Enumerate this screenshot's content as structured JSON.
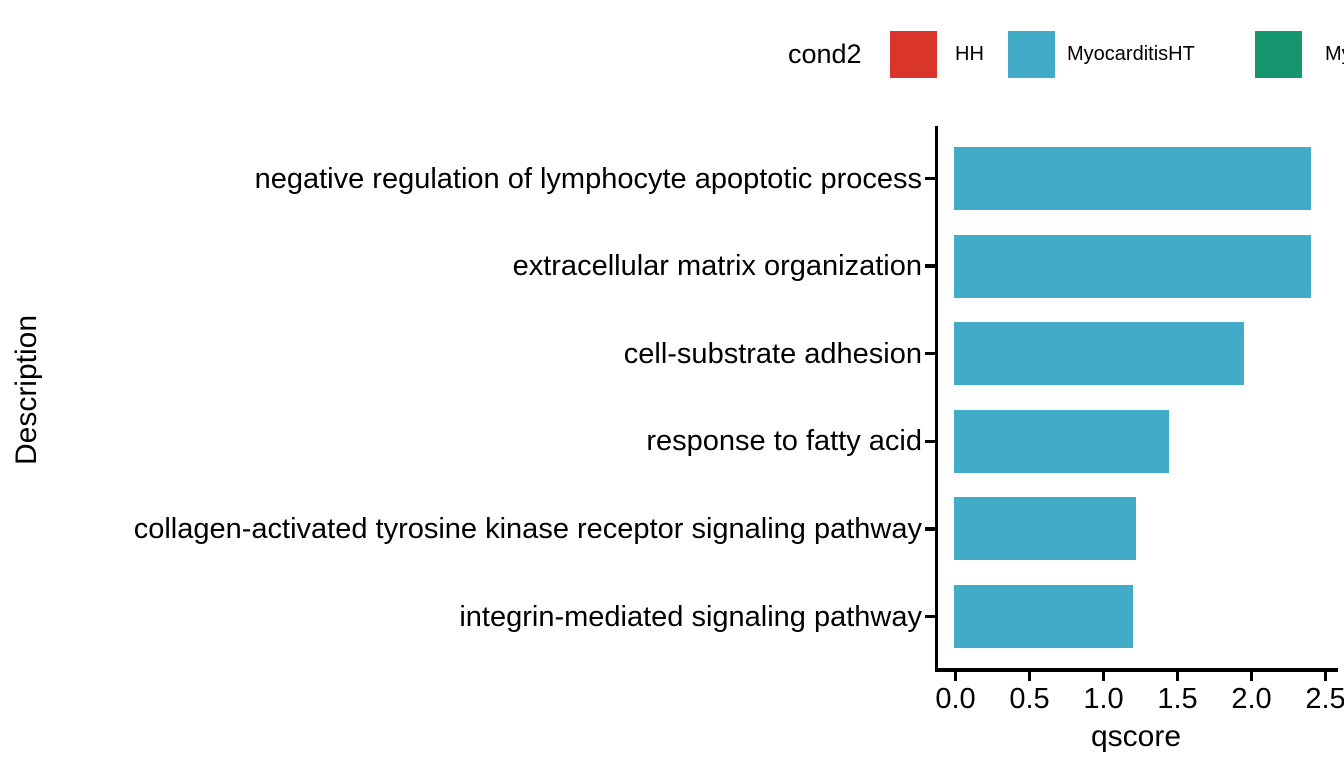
{
  "legend": {
    "title": "cond2",
    "entries": [
      {
        "label": "HH",
        "color": "#d9352a"
      },
      {
        "label": "MyocarditisHT",
        "color": "#42abc8"
      },
      {
        "label": "My",
        "color": "#16966f"
      }
    ]
  },
  "chart_data": {
    "type": "bar",
    "orientation": "horizontal",
    "title": "",
    "xlabel": "qscore",
    "ylabel": "Description",
    "categories": [
      "negative regulation of lymphocyte apoptotic process",
      "extracellular matrix organization",
      "cell-substrate adhesion",
      "response to fatty acid",
      "collagen-activated tyrosine kinase receptor signaling pathway",
      "integrin-mediated signaling pathway"
    ],
    "values": [
      2.41,
      2.41,
      1.96,
      1.45,
      1.23,
      1.21
    ],
    "series_name": "MyocarditisHT",
    "bar_color": "#42abc8",
    "xlim": [
      0,
      2.5
    ],
    "xticks": [
      0,
      0.5,
      1,
      1.5,
      2,
      2.5
    ],
    "xtick_labels": [
      "0.0",
      "0.5",
      "1.0",
      "1.5",
      "2.0",
      "2.5"
    ],
    "grid": false,
    "legend_position": "top"
  }
}
